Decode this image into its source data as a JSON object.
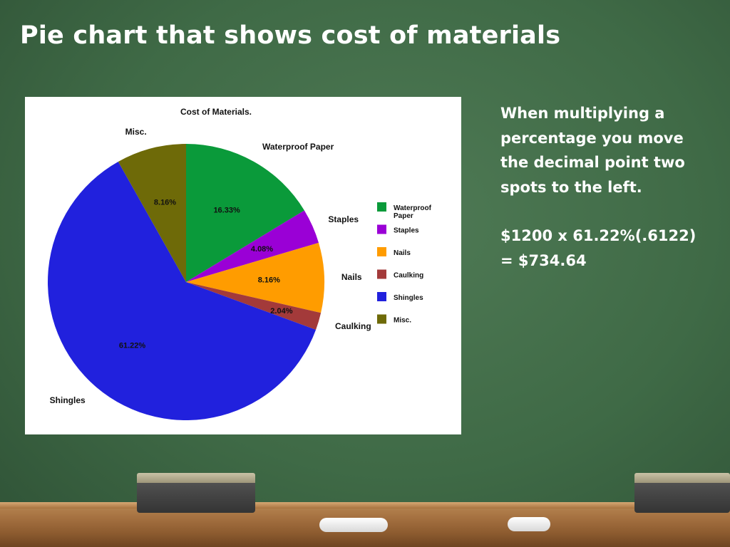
{
  "slide": {
    "title": "Pie chart that shows cost of materials",
    "explanation": "When multiplying a percentage you move the decimal point two spots to the left.",
    "calculation": [
      "$1200 x 61.22%(.6122)",
      "= $734.64"
    ]
  },
  "chart_data": {
    "type": "pie",
    "title": "Cost of Materials.",
    "legend_position": "right",
    "slices": [
      {
        "label": "Waterproof Paper",
        "legend_label": "Waterproof Paper",
        "value": 16.33,
        "value_label": "16.33%",
        "color": "#0a9a3a"
      },
      {
        "label": "Staples",
        "legend_label": "Staples",
        "value": 4.08,
        "value_label": "4.08%",
        "color": "#9a00d6"
      },
      {
        "label": "Nails",
        "legend_label": "Nails",
        "value": 8.16,
        "value_label": "8.16%",
        "color": "#ff9c00"
      },
      {
        "label": "Caulking",
        "legend_label": "Caulking",
        "value": 2.04,
        "value_label": "2.04%",
        "color": "#a33a3a"
      },
      {
        "label": "Shingles",
        "legend_label": "Shingles",
        "value": 61.22,
        "value_label": "61.22%",
        "color": "#2121dd"
      },
      {
        "label": "Misc.",
        "legend_label": "Misc.",
        "value": 8.16,
        "value_label": "8.16%",
        "color": "#6e6a08"
      }
    ]
  }
}
